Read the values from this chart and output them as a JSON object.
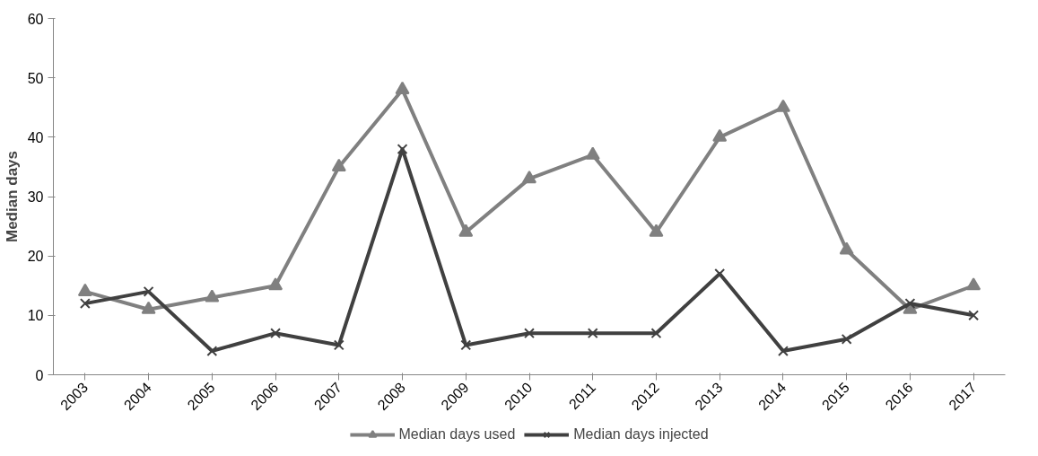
{
  "chart_data": {
    "type": "line",
    "ylabel": "Median days",
    "categories": [
      "2003",
      "2004",
      "2005",
      "2006",
      "2007",
      "2008",
      "2009",
      "2010",
      "2011",
      "2012",
      "2013",
      "2014",
      "2015",
      "2016",
      "2017"
    ],
    "series": [
      {
        "name": "Median days used",
        "color": "#808080",
        "marker": "triangle",
        "values": [
          14,
          11,
          13,
          15,
          35,
          48,
          24,
          33,
          37,
          24,
          40,
          45,
          21,
          11,
          15
        ]
      },
      {
        "name": "Median days injected",
        "color": "#404040",
        "marker": "cross",
        "values": [
          12,
          14,
          4,
          7,
          5,
          38,
          5,
          7,
          7,
          7,
          17,
          4,
          6,
          12,
          10
        ]
      }
    ],
    "ylim": [
      0,
      60
    ],
    "yticks": [
      0,
      10,
      20,
      30,
      40,
      50,
      60
    ],
    "grid": false,
    "legend": "bottom",
    "line_style": "solid"
  }
}
